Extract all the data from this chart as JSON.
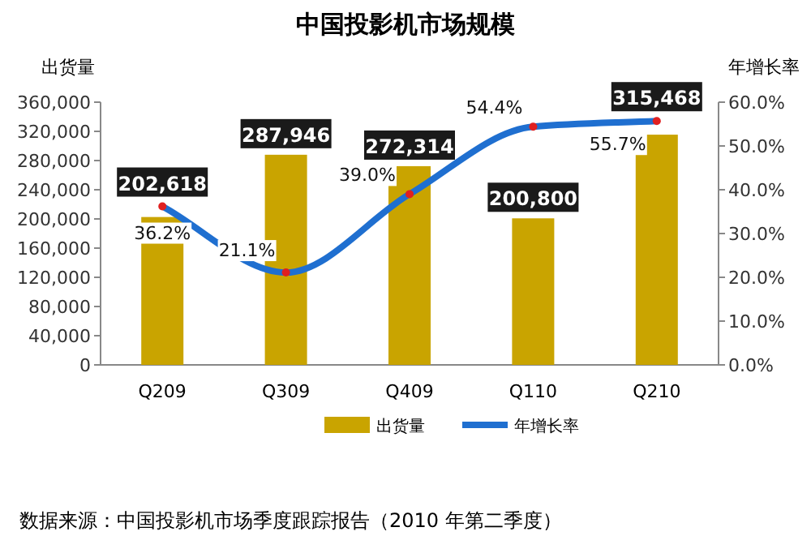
{
  "chart_data": {
    "type": "bar",
    "title": "中国投影机市场规模",
    "ylabel": "出货量",
    "y2label": "年增长率",
    "categories": [
      "Q209",
      "Q309",
      "Q409",
      "Q110",
      "Q210"
    ],
    "series": [
      {
        "name": "出货量",
        "color": "#c9a400",
        "values": [
          202618,
          287946,
          272314,
          200800,
          315468
        ],
        "value_labels": [
          "202,618",
          "287,946",
          "272,314",
          "200,800",
          "315,468"
        ]
      },
      {
        "name": "年增长率",
        "type": "line",
        "axis": "y2",
        "color": "#1f6fd0",
        "values": [
          36.2,
          21.1,
          39.0,
          54.4,
          55.7
        ],
        "value_labels": [
          "36.2%",
          "21.1%",
          "39.0%",
          "54.4%",
          "55.7%"
        ]
      }
    ],
    "ylim": [
      0,
      360000
    ],
    "yticks": [
      {
        "value": 0,
        "label": "0"
      },
      {
        "value": 40000,
        "label": "40,000"
      },
      {
        "value": 80000,
        "label": "80,000"
      },
      {
        "value": 120000,
        "label": "120,000"
      },
      {
        "value": 160000,
        "label": "160,000"
      },
      {
        "value": 200000,
        "label": "200,000"
      },
      {
        "value": 240000,
        "label": "240,000"
      },
      {
        "value": 280000,
        "label": "280,000"
      },
      {
        "value": 320000,
        "label": "320,000"
      },
      {
        "value": 360000,
        "label": "360,000"
      }
    ],
    "y2lim": [
      0,
      60
    ],
    "y2ticks": [
      {
        "value": 0,
        "label": "0.0%"
      },
      {
        "value": 10,
        "label": "10.0%"
      },
      {
        "value": 20,
        "label": "20.0%"
      },
      {
        "value": 30,
        "label": "30.0%"
      },
      {
        "value": 40,
        "label": "40.0%"
      },
      {
        "value": 50,
        "label": "50.0%"
      },
      {
        "value": 60,
        "label": "60.0%"
      }
    ],
    "marker": "circle",
    "line_style": "solid",
    "legend": "bottom",
    "grid": false,
    "annotations": [
      "数据来源：中国投影机市场季度跟踪报告（2010 年第二季度）"
    ]
  }
}
